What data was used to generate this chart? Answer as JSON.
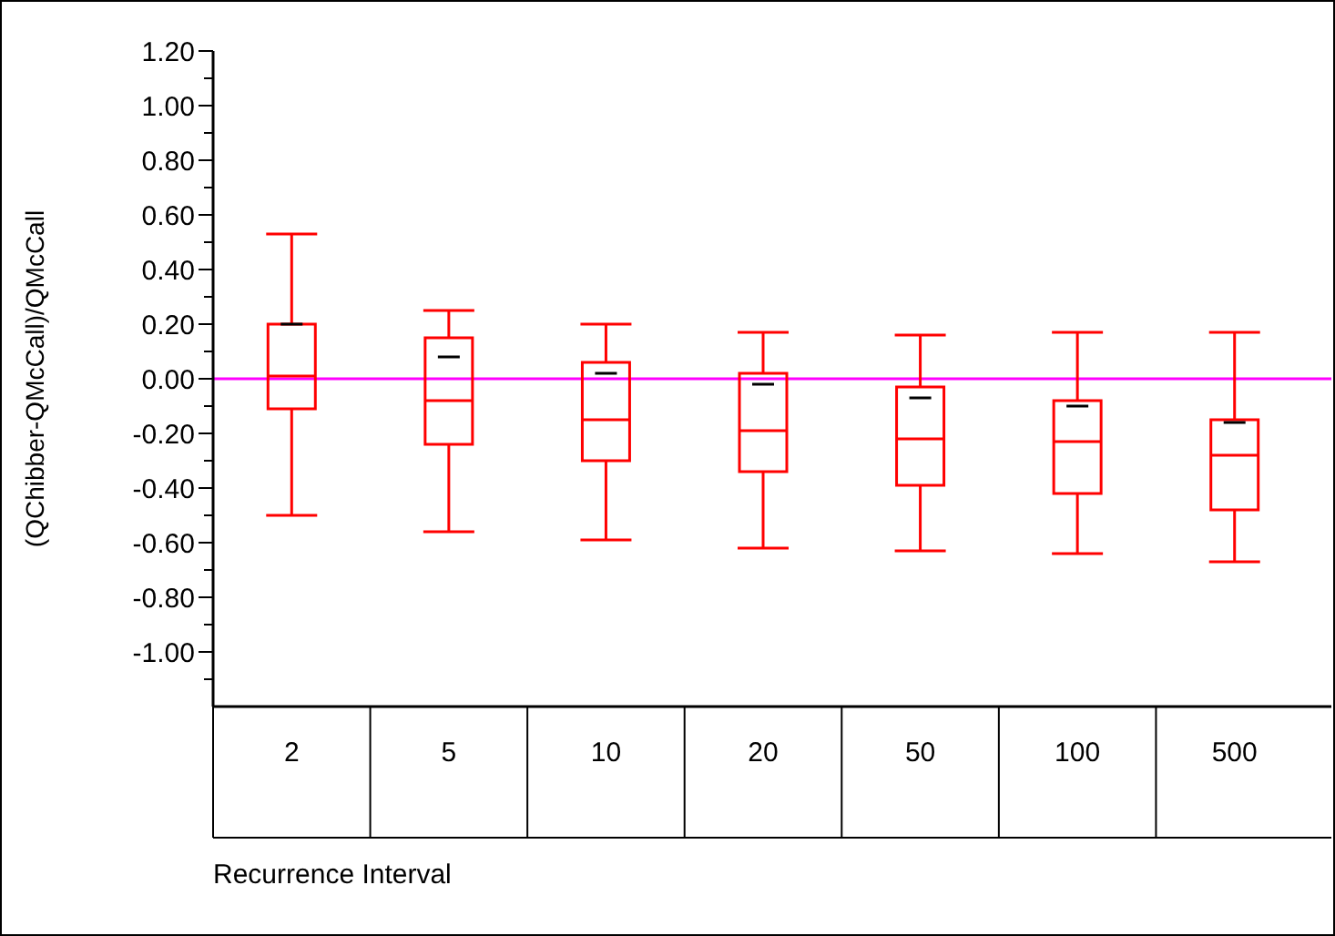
{
  "chart_data": {
    "type": "box",
    "xlabel": "Recurrence Interval",
    "ylabel": "(QChibber-QMcCall)/QMcCall",
    "categories": [
      "2",
      "5",
      "10",
      "20",
      "50",
      "100",
      "500"
    ],
    "boxes": [
      {
        "low": -0.5,
        "q1": -0.11,
        "median": 0.01,
        "q3": 0.2,
        "high": 0.53,
        "mean": 0.2
      },
      {
        "low": -0.56,
        "q1": -0.24,
        "median": -0.08,
        "q3": 0.15,
        "high": 0.25,
        "mean": 0.08
      },
      {
        "low": -0.59,
        "q1": -0.3,
        "median": -0.15,
        "q3": 0.06,
        "high": 0.2,
        "mean": 0.02
      },
      {
        "low": -0.62,
        "q1": -0.34,
        "median": -0.19,
        "q3": 0.02,
        "high": 0.17,
        "mean": -0.02
      },
      {
        "low": -0.63,
        "q1": -0.39,
        "median": -0.22,
        "q3": -0.03,
        "high": 0.16,
        "mean": -0.07
      },
      {
        "low": -0.64,
        "q1": -0.42,
        "median": -0.23,
        "q3": -0.08,
        "high": 0.17,
        "mean": -0.1
      },
      {
        "low": -0.67,
        "q1": -0.48,
        "median": -0.28,
        "q3": -0.15,
        "high": 0.17,
        "mean": -0.16
      }
    ],
    "color": "#ff0000",
    "ylim": [
      -1.2,
      1.2
    ],
    "yticks": [
      {
        "value": -1.1,
        "label": null
      },
      {
        "value": -1.0,
        "label": "-1.00"
      },
      {
        "value": -0.9,
        "label": null
      },
      {
        "value": -0.8,
        "label": "-0.80"
      },
      {
        "value": -0.7,
        "label": null
      },
      {
        "value": -0.6,
        "label": "-0.60"
      },
      {
        "value": -0.5,
        "label": null
      },
      {
        "value": -0.4,
        "label": "-0.40"
      },
      {
        "value": -0.3,
        "label": null
      },
      {
        "value": -0.2,
        "label": "-0.20"
      },
      {
        "value": -0.1,
        "label": null
      },
      {
        "value": 0,
        "label": "0.00"
      },
      {
        "value": 0.1,
        "label": null
      },
      {
        "value": 0.2,
        "label": "0.20"
      },
      {
        "value": 0.3,
        "label": null
      },
      {
        "value": 0.4,
        "label": "0.40"
      },
      {
        "value": 0.5,
        "label": null
      },
      {
        "value": 0.6,
        "label": "0.60"
      },
      {
        "value": 0.7,
        "label": null
      },
      {
        "value": 0.8,
        "label": "0.80"
      },
      {
        "value": 0.9,
        "label": null
      },
      {
        "value": 1.0,
        "label": "1.00"
      },
      {
        "value": 1.1,
        "label": null
      },
      {
        "value": 1.2,
        "label": "1.20"
      }
    ],
    "ref_lines": [
      {
        "axis": "y",
        "value": 0,
        "color": "#ff00ff"
      }
    ],
    "grid": false
  }
}
